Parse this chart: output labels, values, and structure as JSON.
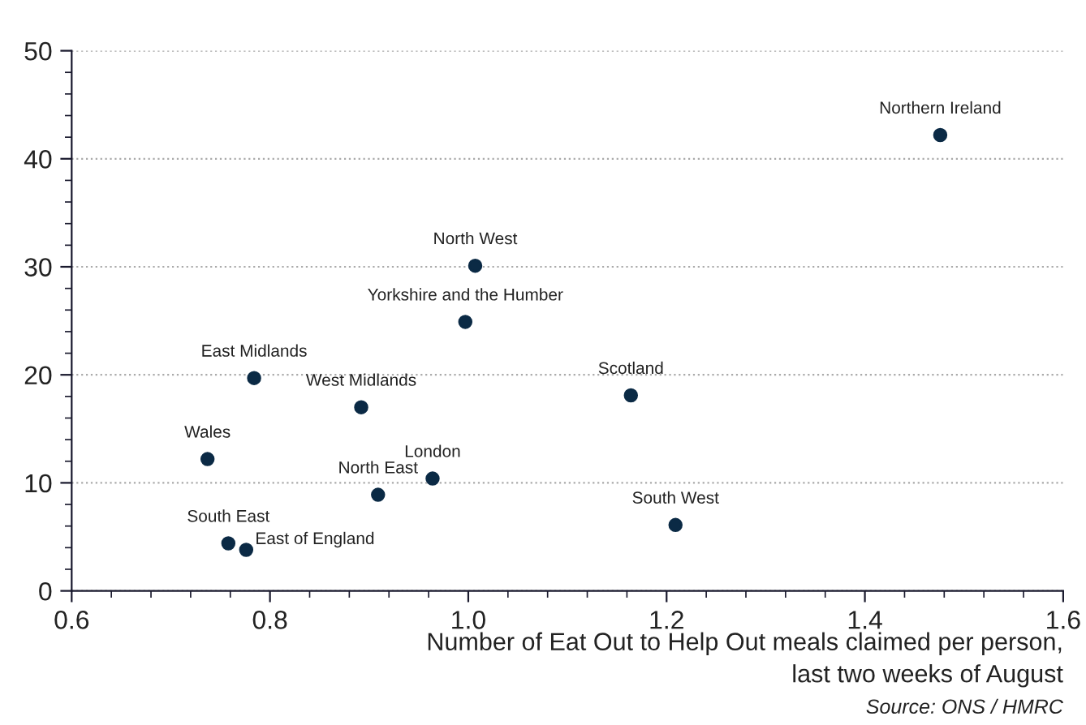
{
  "chart_data": {
    "type": "scatter",
    "xlabel": "Number of Eat Out to Help Out meals claimed per person,\nlast two weeks of August",
    "series": [
      {
        "color": "#0b2a45",
        "x": [
          1.476,
          1.007,
          0.997,
          0.784,
          0.892,
          1.164,
          0.737,
          0.964,
          0.909,
          1.209,
          0.758,
          0.776
        ],
        "values": [
          42.2,
          30.1,
          24.9,
          19.7,
          17.0,
          18.1,
          12.2,
          10.4,
          8.9,
          6.1,
          4.4,
          3.8
        ]
      }
    ],
    "annotations": [
      {
        "text": "Northern Ireland",
        "x": 1.476,
        "y": 42.2
      },
      {
        "text": "North West",
        "x": 1.007,
        "y": 30.1
      },
      {
        "text": "Yorkshire and the Humber",
        "x": 0.997,
        "y": 24.9
      },
      {
        "text": "East Midlands",
        "x": 0.784,
        "y": 19.7
      },
      {
        "text": "West Midlands",
        "x": 0.892,
        "y": 17.0
      },
      {
        "text": "Scotland",
        "x": 1.164,
        "y": 18.1
      },
      {
        "text": "Wales",
        "x": 0.737,
        "y": 12.2
      },
      {
        "text": "London",
        "x": 0.964,
        "y": 10.4
      },
      {
        "text": "North East",
        "x": 0.909,
        "y": 8.9
      },
      {
        "text": "South West",
        "x": 1.209,
        "y": 6.1
      },
      {
        "text": "South East",
        "x": 0.758,
        "y": 4.4
      },
      {
        "text": "East of England",
        "x": 0.776,
        "y": 3.8
      },
      "Source: ONS / HMRC"
    ],
    "xlim": [
      0.6,
      1.6
    ],
    "xticks": [
      0.6,
      0.8,
      {
        "value": 1.0,
        "label": "1.0"
      },
      1.2,
      1.4,
      1.6
    ],
    "ylim": [
      0,
      50
    ],
    "yticks": [
      0,
      10,
      20,
      30,
      40,
      50
    ],
    "grid": "y",
    "marker": "circle"
  }
}
